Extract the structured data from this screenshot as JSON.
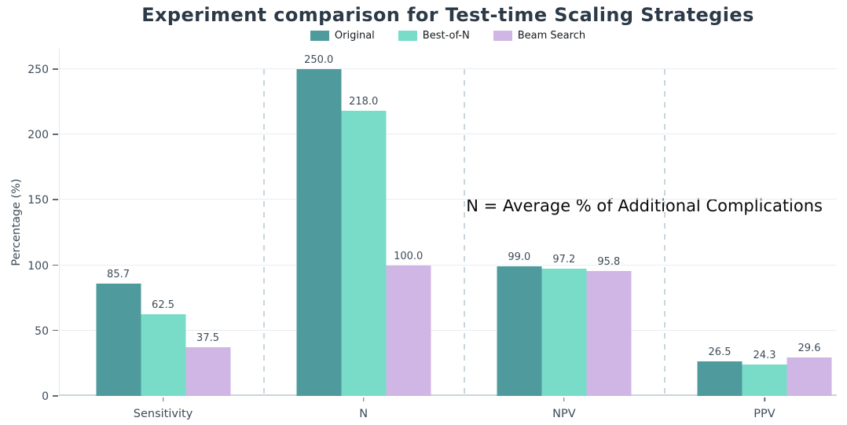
{
  "chart_data": {
    "type": "bar",
    "title": "Experiment comparison for Test-time Scaling Strategies",
    "ylabel": "Percentage (%)",
    "xlabel": "",
    "categories": [
      "Sensitivity",
      "N",
      "NPV",
      "PPV"
    ],
    "series": [
      {
        "name": "Original",
        "color": "#4f9a9d",
        "values": [
          85.7,
          250.0,
          99.0,
          26.5
        ]
      },
      {
        "name": "Best-of-N",
        "color": "#79dcc9",
        "values": [
          62.5,
          218.0,
          97.2,
          24.3
        ]
      },
      {
        "name": "Beam Search",
        "color": "#cfb6e4",
        "values": [
          37.5,
          100.0,
          95.8,
          29.6
        ]
      }
    ],
    "yticks": [
      0,
      50,
      100,
      150,
      200,
      250
    ],
    "ylim": [
      0,
      265
    ],
    "annotation": "N = Average % of Additional Complications",
    "legend_position": "top-center",
    "grid": "horizontal-solid-plus-vertical-dashed-separators",
    "value_labels": "one-decimal-above-each-bar",
    "colors": {
      "title_text": "#2c3a48",
      "axis_text": "#3d4b58",
      "gridline": "#e9edf0",
      "axis_line": "#ccd5da",
      "separator_dash": "#c8d6dc",
      "background": "#ffffff"
    }
  }
}
